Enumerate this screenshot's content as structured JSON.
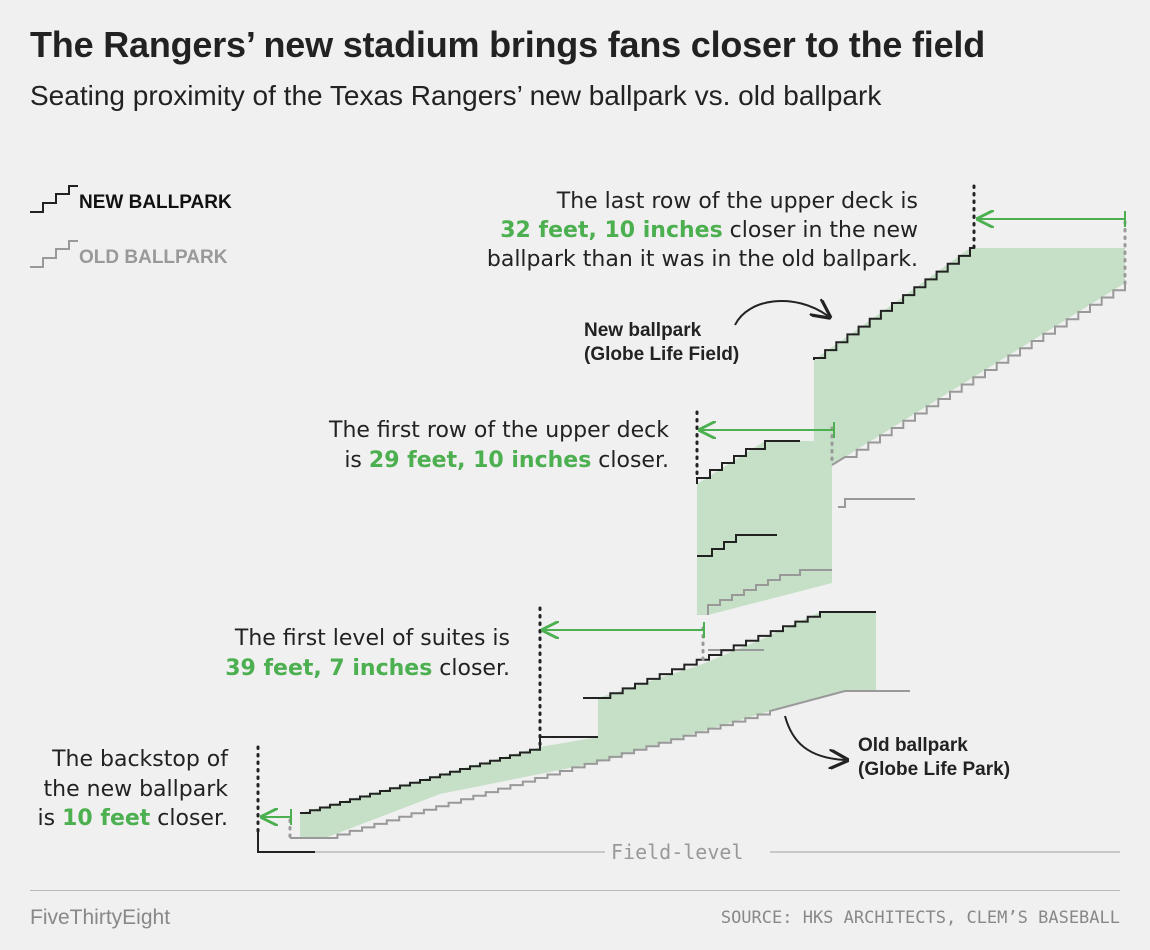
{
  "title": "The Rangers’ new stadium brings fans closer to the field",
  "subtitle": "Seating proximity of the Texas Rangers’ new ballpark vs. old ballpark",
  "legend": {
    "new": "NEW BALLPARK",
    "old": "OLD BALLPARK"
  },
  "annotations": {
    "upper_last": {
      "line1": "The last row of the upper deck is",
      "highlight": "32 feet, 10 inches",
      "line2_rest": " closer in the new",
      "line3": "ballpark than it was in the old ballpark."
    },
    "upper_first": {
      "line1": "The first row of the upper deck",
      "prefix": "is ",
      "highlight": "29 feet, 10 inches",
      "suffix": " closer."
    },
    "suites": {
      "line1": "The first level of suites is",
      "highlight": "39 feet, 7 inches",
      "suffix": " closer."
    },
    "backstop": {
      "line1": "The backstop of",
      "line2": "the new ballpark",
      "prefix": "is ",
      "highlight": "10 feet",
      "suffix": " closer."
    }
  },
  "callouts": {
    "new": {
      "line1": "New ballpark",
      "line2": "(Globe Life Field)"
    },
    "old": {
      "line1": "Old ballpark",
      "line2": "(Globe Life Park)"
    }
  },
  "field_label": "Field-level",
  "footer": {
    "brand": "FiveThirtyEight",
    "source": "SOURCE: HKS ARCHITECTS, CLEM’S BASEBALL"
  },
  "colors": {
    "new_line": "#222222",
    "old_line": "#999999",
    "fill": "#c5e0c6",
    "highlight": "#4caf50"
  }
}
